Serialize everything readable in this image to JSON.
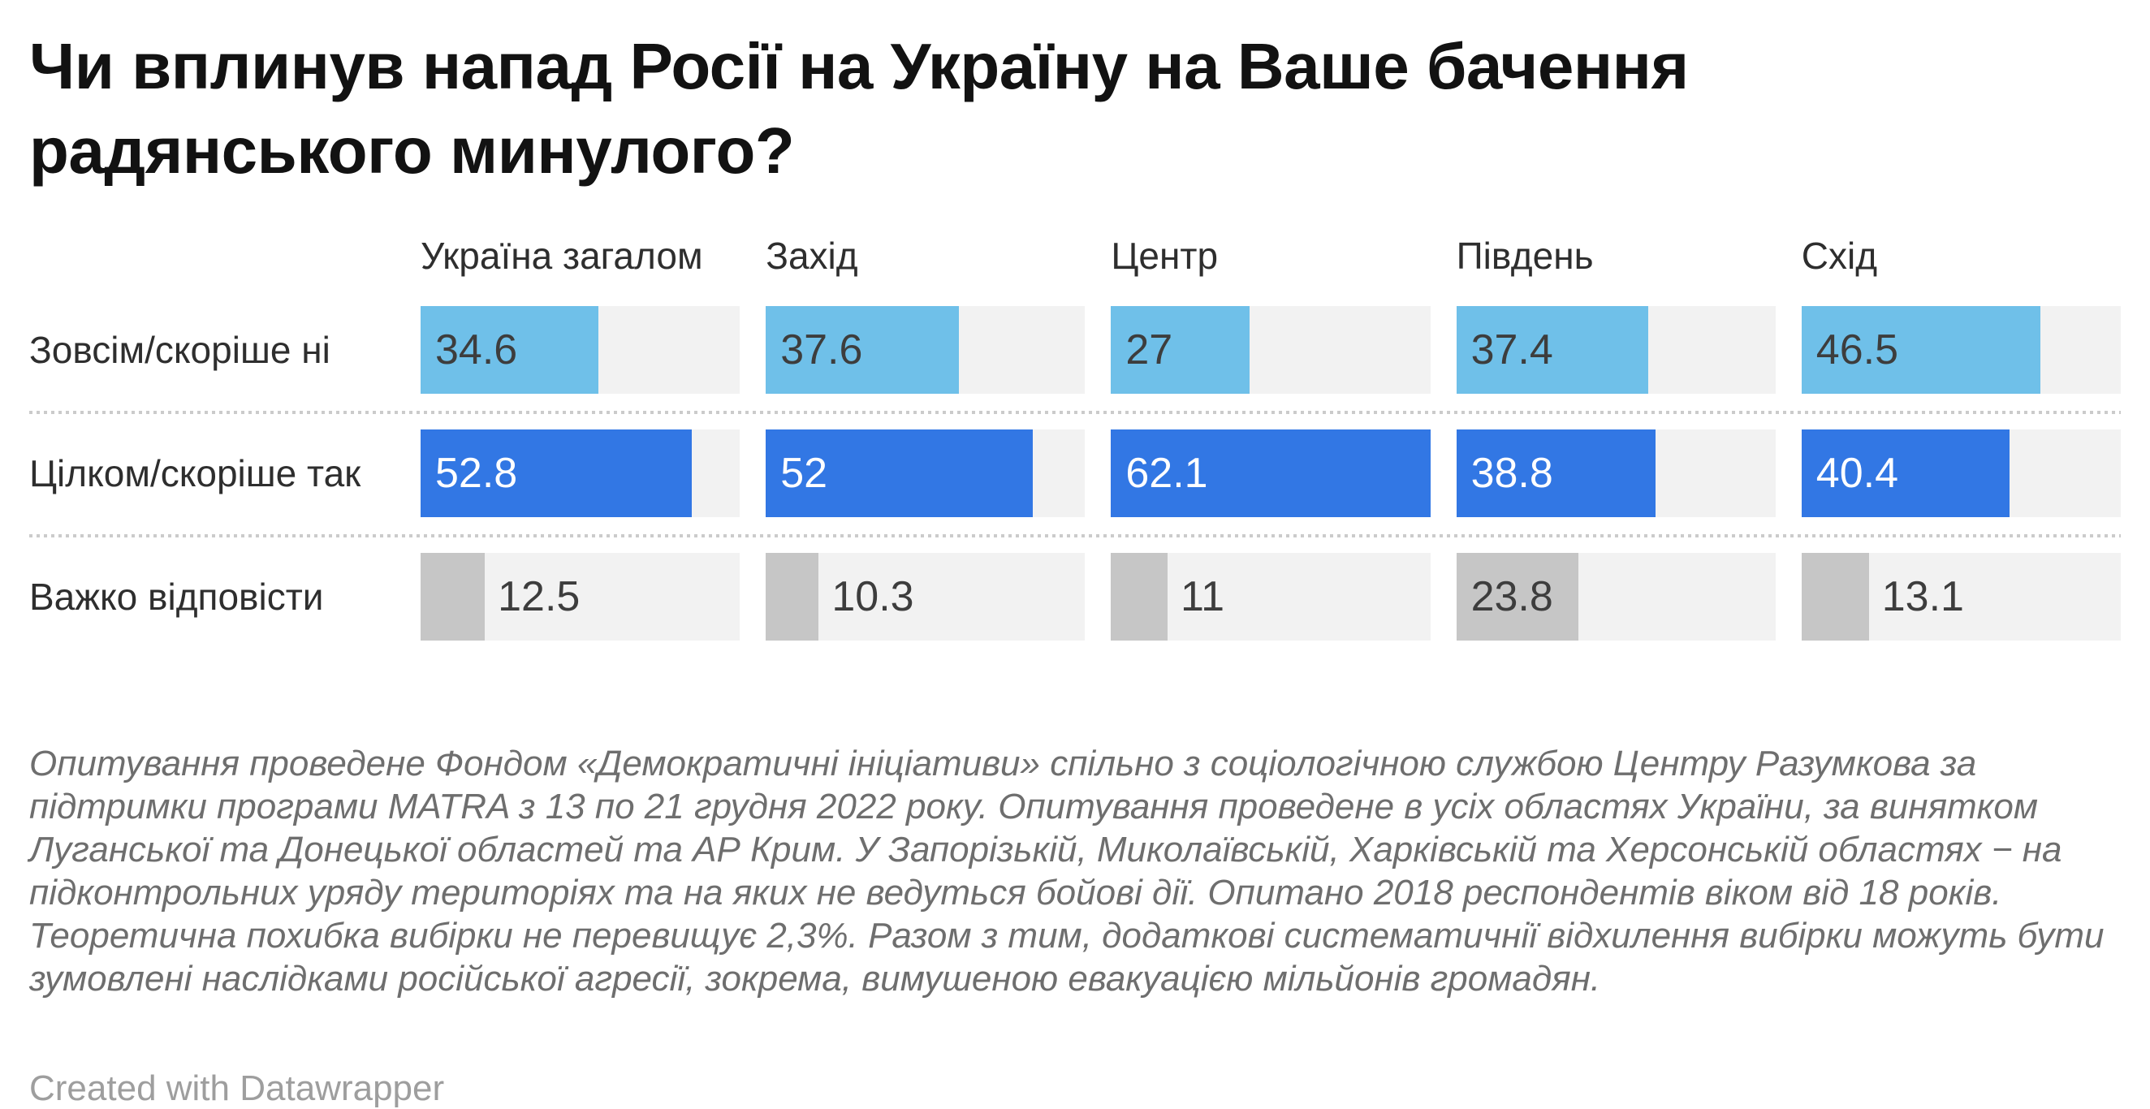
{
  "chart_data": {
    "type": "bar",
    "orientation": "horizontal",
    "title": "Чи вплинув напад Росії на Україну на Ваше бачення радянського минулого?",
    "categories": [
      "Україна загалом",
      "Захід",
      "Центр",
      "Південь",
      "Схід"
    ],
    "series": [
      {
        "name": "Зовсім/скоріше ні",
        "values": [
          34.6,
          37.6,
          27,
          37.4,
          46.5
        ],
        "bar_color": "#6fc0e9",
        "label_color": "#3d3d3d"
      },
      {
        "name": "Цілком/скоріше так",
        "values": [
          52.8,
          52,
          62.1,
          38.8,
          40.4
        ],
        "bar_color": "#3277e4",
        "label_color": "#ffffff"
      },
      {
        "name": "Важко відповісти",
        "values": [
          12.5,
          10.3,
          11,
          23.8,
          13.1
        ],
        "bar_color": "#c6c6c6",
        "label_color": "#3d3d3d"
      }
    ],
    "xlim": [
      0,
      62.1
    ],
    "grid": false,
    "legend": "none",
    "value_labels": true,
    "track_color": "#f2f2f2"
  },
  "notes": "Опитування проведене Фондом «Демократичні ініціативи» спільно з соціологічною службою Центру Разумкова за підтримки програми MATRA з 13 по 21 грудня 2022 року. Опитування проведене в усіх областях України, за винятком Луганської та Донецької областей та АР Крим. У Запорізькій, Миколаївській, Харківській та Херсонській областях − на підконтрольних уряду територіях та на яких не ведуться бойові дії. Опитано 2018 респондентів віком від 18 років. Теоретична похибка вибірки не перевищує 2,3%. Разом з тим, додаткові систематичнії відхилення вибірки можуть бути зумовлені наслідками російської агресії, зокрема, вимушеною евакуацією мільйонів громадян.",
  "attribution": "Created with Datawrapper"
}
